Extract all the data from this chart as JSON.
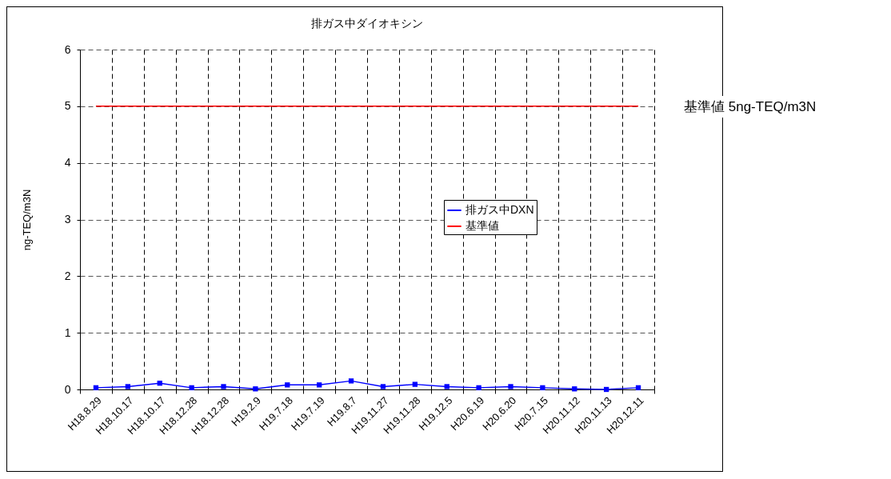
{
  "chart_data": {
    "type": "line",
    "title": "排ガス中ダイオキシン",
    "ylabel": "ng-TEQ/m3N",
    "categories": [
      "H18.8.29",
      "H18.10.17",
      "H18.10.17",
      "H18.12.28",
      "H18.12.28",
      "H19.2.9",
      "H19.7.18",
      "H19.7.19",
      "H19.8.7",
      "H19.11.27",
      "H19.11.28",
      "H19.12.5",
      "H20.6.19",
      "H20.6.20",
      "H20.7.15",
      "H20.11.12",
      "H20.11.13",
      "H20.12.11"
    ],
    "series": [
      {
        "name": "排ガス中DXN",
        "color": "#0000ff",
        "marker": "square",
        "values": [
          0.03,
          0.05,
          0.11,
          0.03,
          0.05,
          0.01,
          0.08,
          0.08,
          0.15,
          0.05,
          0.09,
          0.05,
          0.03,
          0.05,
          0.03,
          0.01,
          0.0,
          0.03
        ]
      },
      {
        "name": "基準値",
        "color": "#ff0000",
        "marker": "none",
        "values": [
          5,
          5,
          5,
          5,
          5,
          5,
          5,
          5,
          5,
          5,
          5,
          5,
          5,
          5,
          5,
          5,
          5,
          5
        ]
      }
    ],
    "annotations": [
      "基準値 5ng-TEQ/m3N"
    ],
    "ylim": [
      0,
      6
    ],
    "yticks": [
      0,
      1,
      2,
      3,
      4,
      5,
      6
    ],
    "grid": true,
    "legend": "right"
  }
}
